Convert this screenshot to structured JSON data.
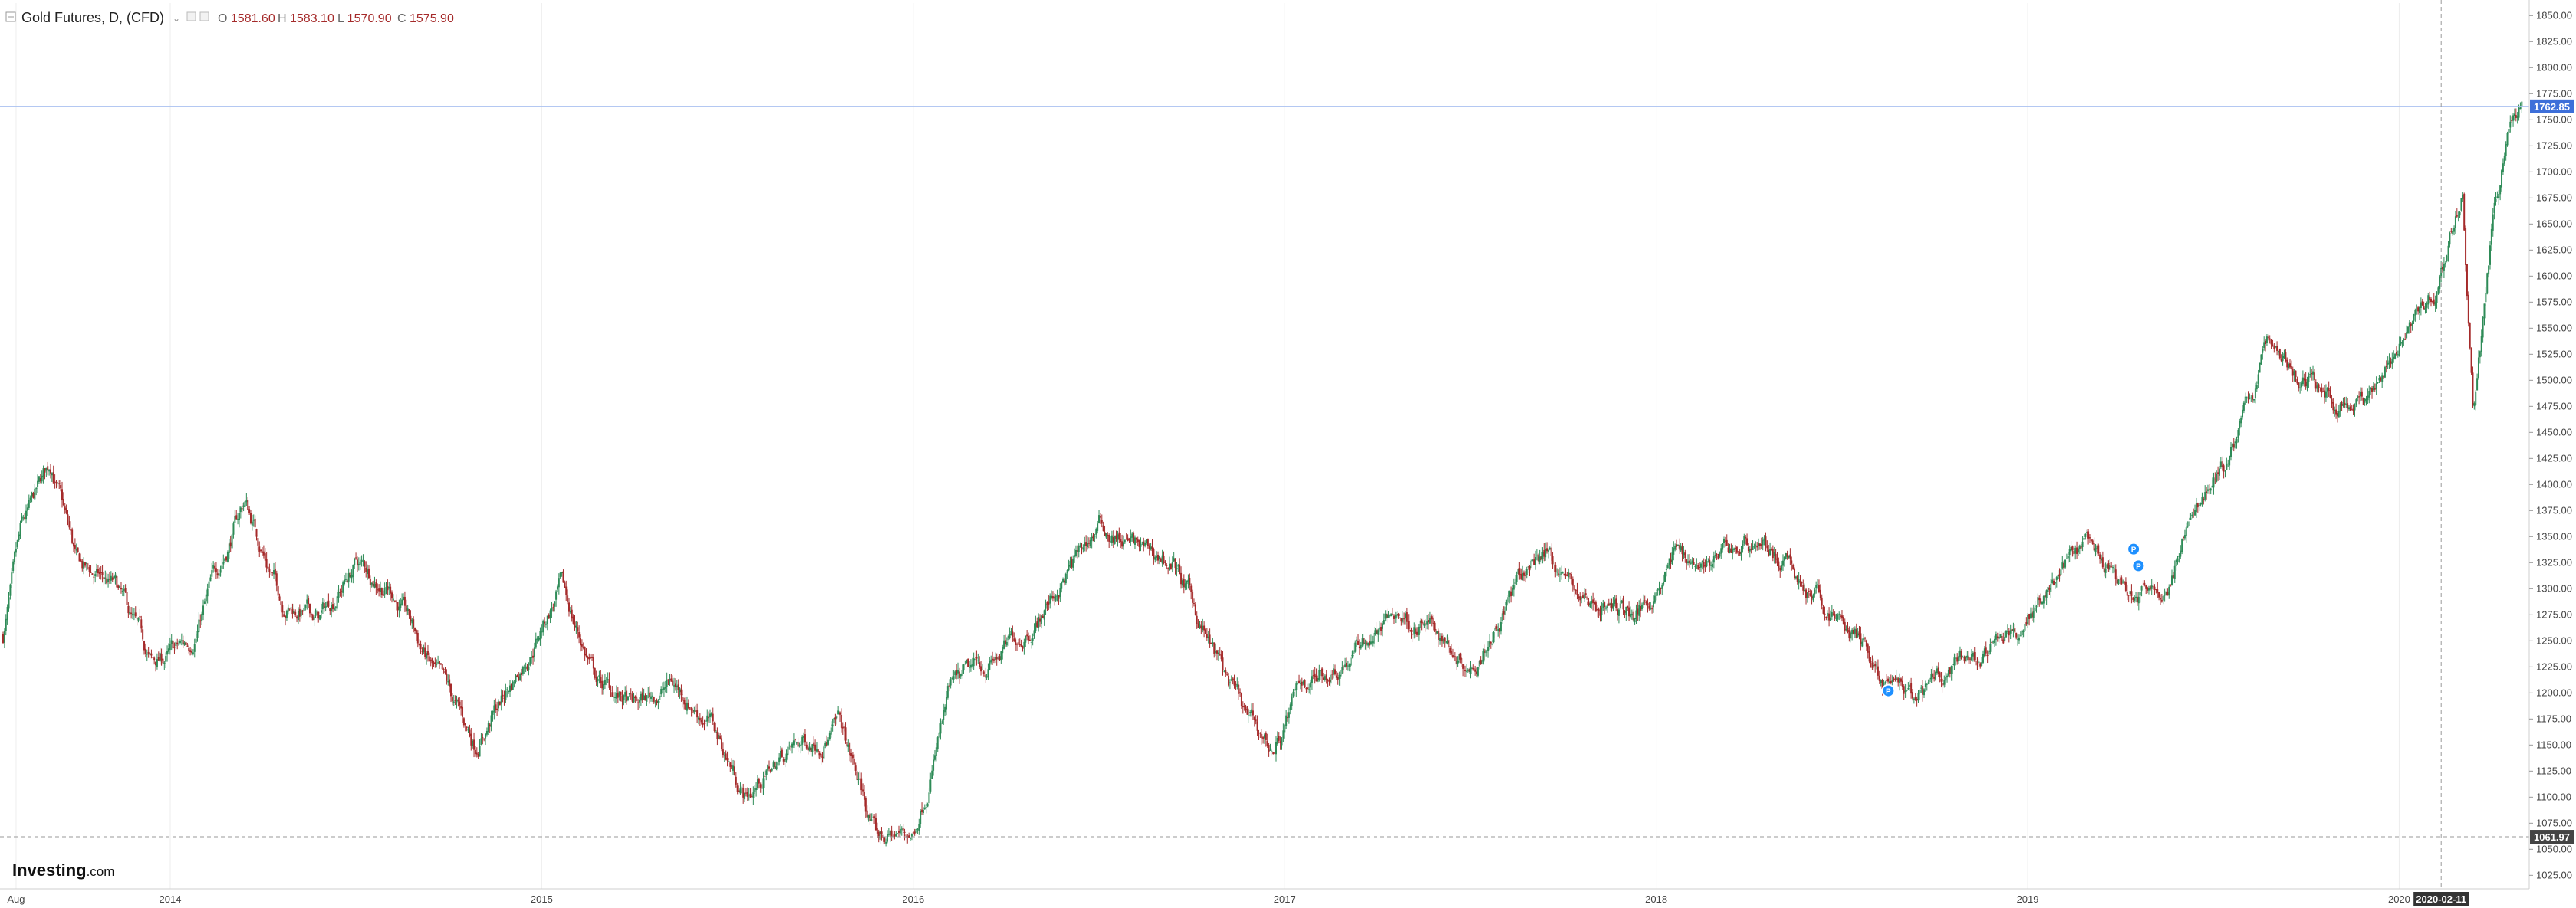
{
  "header": {
    "symbol": "Gold Futures, D, (CFD)",
    "ohlc": [
      {
        "label": "O",
        "value": "1581.60"
      },
      {
        "label": "H",
        "value": "1583.10"
      },
      {
        "label": "L",
        "value": "1570.90"
      },
      {
        "label": "C",
        "value": "1575.90"
      }
    ]
  },
  "brand": {
    "name": "Investing",
    "suffix": ".com"
  },
  "colors": {
    "up": "#2e8b57",
    "down": "#a52a2a",
    "price_line": "#a9c1f0",
    "price_badge": "#3d6fd9",
    "low_badge": "#444444",
    "grid": "#eeeeee",
    "event_marker": "#1e90ff"
  },
  "chart_data": {
    "type": "candlestick",
    "title": "Gold Futures, D, (CFD)",
    "ylim": [
      1012,
      1862
    ],
    "y_ticks": [
      1025,
      1050,
      1075,
      1100,
      1125,
      1150,
      1175,
      1200,
      1225,
      1250,
      1275,
      1300,
      1325,
      1350,
      1375,
      1400,
      1425,
      1450,
      1475,
      1500,
      1525,
      1550,
      1575,
      1600,
      1625,
      1650,
      1675,
      1700,
      1725,
      1750,
      1775,
      1800,
      1825,
      1850
    ],
    "y_tick_labels": [
      "1025.00",
      "1050.00",
      "1075.00",
      "1100.00",
      "1125.00",
      "1150.00",
      "1175.00",
      "1200.00",
      "1225.00",
      "1250.00",
      "1275.00",
      "1300.00",
      "1325.00",
      "1350.00",
      "1375.00",
      "1400.00",
      "1425.00",
      "1450.00",
      "1475.00",
      "1500.00",
      "1525.00",
      "1550.00",
      "1575.00",
      "1600.00",
      "1625.00",
      "1650.00",
      "1675.00",
      "1700.00",
      "1725.00",
      "1750.00",
      "1775.00",
      "1800.00",
      "1825.00",
      "1850.00"
    ],
    "x_range": [
      2013.55,
      2020.35
    ],
    "x_ticks": [
      {
        "label": "Aug",
        "t": 2013.585
      },
      {
        "label": "2014",
        "t": 2014.0
      },
      {
        "label": "2015",
        "t": 2015.0
      },
      {
        "label": "2016",
        "t": 2016.0
      },
      {
        "label": "2017",
        "t": 2017.0
      },
      {
        "label": "2018",
        "t": 2018.0
      },
      {
        "label": "2019",
        "t": 2019.0
      },
      {
        "label": "2020",
        "t": 2020.0
      }
    ],
    "cursor": {
      "label": "2020-02-11",
      "t": 2020.113
    },
    "current_price": {
      "label": "1762.85",
      "value": 1762.85
    },
    "low_price": {
      "label": "1061.97",
      "value": 1061.97
    },
    "price_path": [
      [
        2013.55,
        1255
      ],
      [
        2013.6,
        1350
      ],
      [
        2013.68,
        1420
      ],
      [
        2013.75,
        1320
      ],
      [
        2013.85,
        1300
      ],
      [
        2013.95,
        1225
      ],
      [
        2014.05,
        1245
      ],
      [
        2014.2,
        1385
      ],
      [
        2014.3,
        1290
      ],
      [
        2014.4,
        1270
      ],
      [
        2014.5,
        1325
      ],
      [
        2014.6,
        1300
      ],
      [
        2014.7,
        1225
      ],
      [
        2014.82,
        1150
      ],
      [
        2014.92,
        1210
      ],
      [
        2015.05,
        1300
      ],
      [
        2015.15,
        1210
      ],
      [
        2015.25,
        1185
      ],
      [
        2015.35,
        1210
      ],
      [
        2015.45,
        1175
      ],
      [
        2015.55,
        1100
      ],
      [
        2015.65,
        1140
      ],
      [
        2015.8,
        1170
      ],
      [
        2015.9,
        1060
      ],
      [
        2016.0,
        1065
      ],
      [
        2016.1,
        1200
      ],
      [
        2016.25,
        1240
      ],
      [
        2016.35,
        1280
      ],
      [
        2016.5,
        1360
      ],
      [
        2016.62,
        1335
      ],
      [
        2016.7,
        1325
      ],
      [
        2016.8,
        1245
      ],
      [
        2016.9,
        1170
      ],
      [
        2016.97,
        1145
      ],
      [
        2017.05,
        1210
      ],
      [
        2017.15,
        1230
      ],
      [
        2017.3,
        1275
      ],
      [
        2017.4,
        1260
      ],
      [
        2017.5,
        1230
      ],
      [
        2017.6,
        1290
      ],
      [
        2017.7,
        1340
      ],
      [
        2017.8,
        1290
      ],
      [
        2017.95,
        1275
      ],
      [
        2018.05,
        1335
      ],
      [
        2018.15,
        1325
      ],
      [
        2018.28,
        1350
      ],
      [
        2018.4,
        1300
      ],
      [
        2018.55,
        1250
      ],
      [
        2018.62,
        1205
      ],
      [
        2018.7,
        1190
      ],
      [
        2018.8,
        1220
      ],
      [
        2018.92,
        1240
      ],
      [
        2019.05,
        1300
      ],
      [
        2019.15,
        1340
      ],
      [
        2019.27,
        1290
      ],
      [
        2019.38,
        1300
      ],
      [
        2019.45,
        1380
      ],
      [
        2019.55,
        1430
      ],
      [
        2019.65,
        1540
      ],
      [
        2019.75,
        1500
      ],
      [
        2019.85,
        1480
      ],
      [
        2019.93,
        1480
      ],
      [
        2020.02,
        1560
      ],
      [
        2020.1,
        1590
      ],
      [
        2020.17,
        1680
      ],
      [
        2020.2,
        1470
      ],
      [
        2020.25,
        1640
      ],
      [
        2020.3,
        1750
      ],
      [
        2020.33,
        1762.85
      ]
    ],
    "markers": [
      {
        "label": "P",
        "t": 2018.625,
        "value": 1202
      },
      {
        "label": "P",
        "t": 2019.285,
        "value": 1338
      },
      {
        "label": "P",
        "t": 2019.298,
        "value": 1322
      }
    ]
  }
}
